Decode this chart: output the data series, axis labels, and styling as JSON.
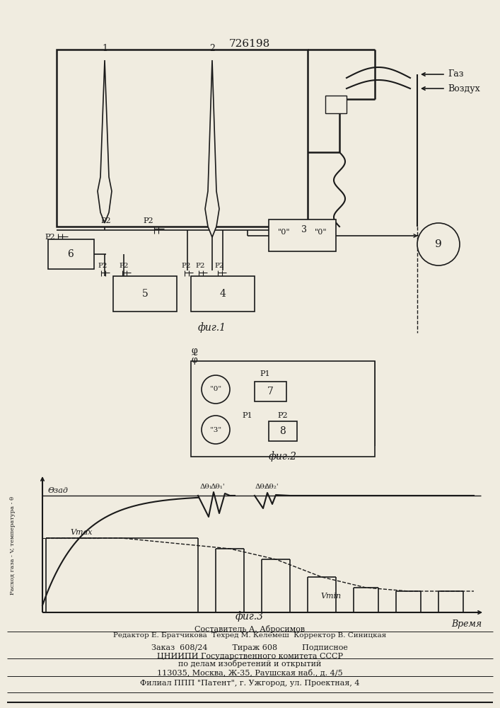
{
  "title": "726198",
  "bg_color": "#e8e4dc",
  "paper_color": "#f0ece0",
  "line_color": "#1a1a1a",
  "fig1_label": "фиг.1",
  "fig2_label": "фиг.2",
  "fig3_label": "фиг.3",
  "footer_lines": [
    "Составитель А. Абросимов",
    "Редактор Е. Братчикова  Техред М. Келемеш  Корректор В. Синицкая",
    "Заказ  608/24          Тираж 608          Подписное",
    "ЦНИИПИ Государственного комитета СССР",
    "по делам изобретений и открытий",
    "113035, Москва, Ж-35, Раушская наб., д. 4/5",
    "Филиал ППП \"Патент\", г. Ужгород, ул. Проектная, 4"
  ],
  "gas_label": "Газ",
  "air_label": "Воздух",
  "ylabel_fig3": "Расход газа - V, температура - θ",
  "xlabel_fig3": "Время",
  "theta_zad_label": "Θзад",
  "v_max_label": "Vmax",
  "v_min_label": "Vmin"
}
